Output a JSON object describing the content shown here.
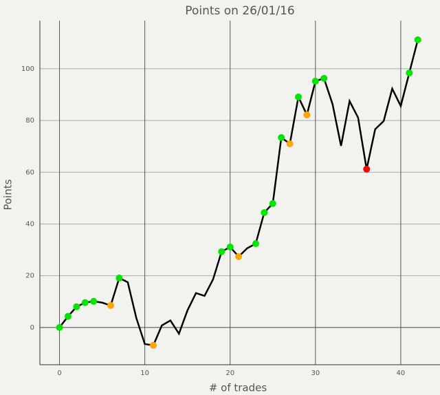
{
  "chart_data": {
    "type": "line",
    "title": "Points on 26/01/16",
    "x_label": "# of trades",
    "y_label": "Points",
    "x": [
      0,
      1,
      2,
      3,
      4,
      5,
      6,
      7,
      8,
      9,
      10,
      11,
      12,
      13,
      14,
      15,
      16,
      17,
      18,
      19,
      20,
      21,
      22,
      23,
      24,
      25,
      26,
      27,
      28,
      29,
      30,
      31,
      32,
      33,
      34,
      35,
      36,
      37,
      38,
      39,
      40,
      41,
      42
    ],
    "series": [
      {
        "type": "line",
        "color": "#000000",
        "values": [
          0,
          4.3,
          8.0,
          9.6,
          10.1,
          9.6,
          8.5,
          19.1,
          17.5,
          3.7,
          -6.4,
          -6.9,
          0.8,
          2.7,
          -2.4,
          6.6,
          13.3,
          12.2,
          18.6,
          29.3,
          31.1,
          27.4,
          30.6,
          32.4,
          44.4,
          47.9,
          73.4,
          71.0,
          89.1,
          82.2,
          95.2,
          96.3,
          86.4,
          70.2,
          87.5,
          81.1,
          61.2,
          76.6,
          79.8,
          92.3,
          85.6,
          98.4,
          111.2
        ]
      },
      {
        "type": "scatter",
        "color": "#00e600",
        "x": [
          0,
          1,
          2,
          3,
          4,
          7,
          19,
          20,
          23,
          24,
          25,
          26,
          28,
          30,
          31,
          41,
          42
        ],
        "values": [
          0,
          4.3,
          8.0,
          9.6,
          10.1,
          19.1,
          29.3,
          31.1,
          32.4,
          44.4,
          47.9,
          73.4,
          89.1,
          95.2,
          96.3,
          98.4,
          111.2
        ]
      },
      {
        "type": "scatter",
        "color": "#ffa500",
        "x": [
          6,
          11,
          21,
          27,
          29
        ],
        "values": [
          8.5,
          -6.9,
          27.4,
          71.0,
          82.2
        ]
      },
      {
        "type": "scatter",
        "color": "#ff0000",
        "x": [
          36
        ],
        "values": [
          61.2
        ]
      }
    ],
    "xlim": [
      -2.3,
      44.6
    ],
    "ylim": [
      -14.4,
      118.6
    ],
    "xticks": [
      0,
      10,
      20,
      30,
      40
    ],
    "yticks": [
      0,
      20,
      40,
      60,
      80,
      100
    ],
    "grid": true
  }
}
